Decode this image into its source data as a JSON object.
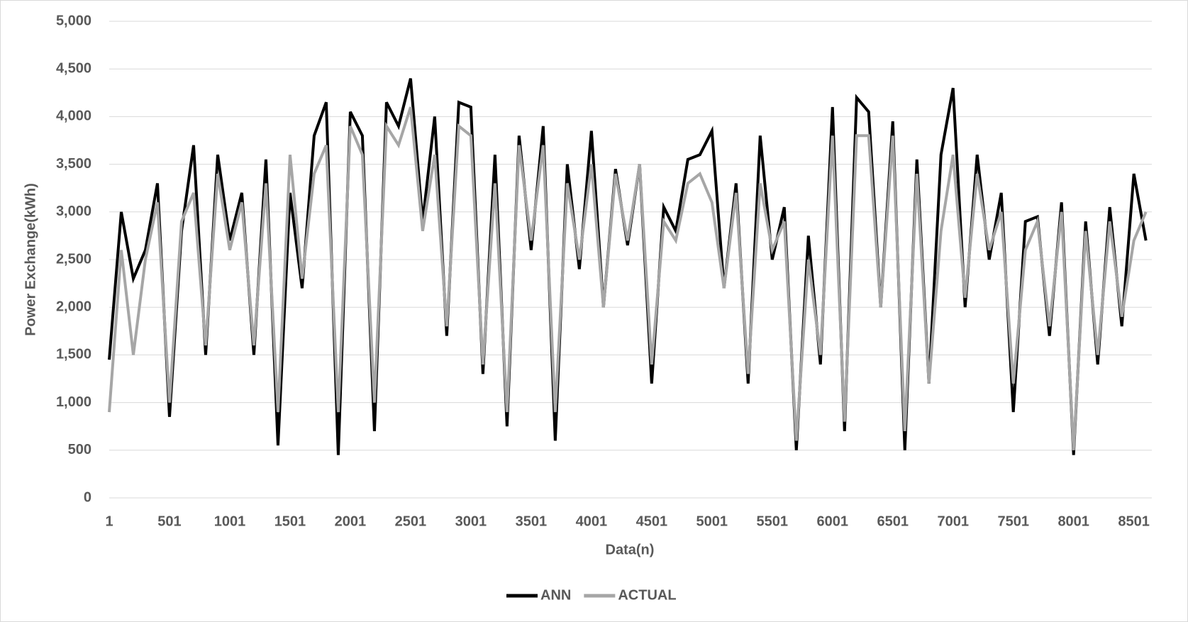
{
  "chart_data": {
    "type": "line",
    "x_label": "Data(n)",
    "y_label": "Power Exchange(kWh)",
    "x": [
      1,
      101,
      201,
      301,
      401,
      501,
      601,
      701,
      801,
      901,
      1001,
      1101,
      1201,
      1301,
      1401,
      1501,
      1601,
      1701,
      1801,
      1901,
      2001,
      2101,
      2201,
      2301,
      2401,
      2501,
      2601,
      2701,
      2801,
      2901,
      3001,
      3101,
      3201,
      3301,
      3401,
      3501,
      3601,
      3701,
      3801,
      3901,
      4001,
      4101,
      4201,
      4301,
      4401,
      4501,
      4601,
      4701,
      4801,
      4901,
      5001,
      5101,
      5201,
      5301,
      5401,
      5501,
      5601,
      5701,
      5801,
      5901,
      6001,
      6101,
      6201,
      6301,
      6401,
      6501,
      6601,
      6701,
      6801,
      6901,
      7001,
      7101,
      7201,
      7301,
      7401,
      7501,
      7601,
      7701,
      7801,
      7901,
      8001,
      8101,
      8201,
      8301,
      8401,
      8501,
      8601
    ],
    "series": [
      {
        "name": "ANN",
        "color": "#000000",
        "values": [
          1450,
          3000,
          2300,
          2600,
          3300,
          850,
          2800,
          3700,
          1500,
          3600,
          2700,
          3200,
          1500,
          3550,
          550,
          3200,
          2200,
          3800,
          4150,
          450,
          4050,
          3800,
          700,
          4150,
          3900,
          4400,
          2900,
          4000,
          1700,
          4150,
          4100,
          1300,
          3600,
          750,
          3800,
          2600,
          3900,
          600,
          3500,
          2400,
          3850,
          2000,
          3450,
          2650,
          3500,
          1200,
          3050,
          2800,
          3550,
          3600,
          3850,
          2200,
          3300,
          1200,
          3800,
          2500,
          3050,
          500,
          2750,
          1400,
          4100,
          700,
          4200,
          4050,
          2000,
          3950,
          500,
          3550,
          1200,
          3600,
          4300,
          2000,
          3600,
          2500,
          3200,
          900,
          2900,
          2950,
          1700,
          3100,
          450,
          2900,
          1400,
          3050,
          1800,
          3400,
          2700
        ]
      },
      {
        "name": "ACTUAL",
        "color": "#a6a6a6",
        "values": [
          900,
          2600,
          1500,
          2500,
          3100,
          1000,
          2900,
          3200,
          1600,
          3400,
          2600,
          3100,
          1600,
          3300,
          900,
          3600,
          2300,
          3400,
          3700,
          900,
          3900,
          3600,
          1000,
          3900,
          3700,
          4100,
          2800,
          3600,
          1800,
          3900,
          3800,
          1400,
          3300,
          900,
          3700,
          2700,
          3700,
          900,
          3300,
          2500,
          3500,
          2000,
          3400,
          2700,
          3500,
          1400,
          2900,
          2700,
          3300,
          3400,
          3100,
          2200,
          3200,
          1300,
          3300,
          2600,
          2900,
          600,
          2500,
          1500,
          3800,
          800,
          3800,
          3800,
          2000,
          3800,
          700,
          3400,
          1200,
          2800,
          3600,
          2100,
          3400,
          2600,
          3000,
          1200,
          2600,
          2900,
          1800,
          3000,
          500,
          2800,
          1500,
          2900,
          1900,
          2700,
          3000
        ]
      }
    ],
    "xlim": [
      1,
      8650
    ],
    "xticks": [
      1,
      501,
      1001,
      1501,
      2001,
      2501,
      3001,
      3501,
      4001,
      4501,
      5001,
      5501,
      6001,
      6501,
      7001,
      7501,
      8001,
      8501
    ],
    "ylim": [
      0,
      5000
    ],
    "yticks": [
      0,
      500,
      {
        "value": 1000,
        "label": "1,000"
      },
      {
        "value": 1500,
        "label": "1,500"
      },
      {
        "value": 2000,
        "label": "2,000"
      },
      {
        "value": 2500,
        "label": "2,500"
      },
      {
        "value": 3000,
        "label": "3,000"
      },
      {
        "value": 3500,
        "label": "3,500"
      },
      {
        "value": 4000,
        "label": "4,000"
      },
      {
        "value": 4500,
        "label": "4,500"
      },
      {
        "value": 5000,
        "label": "5,000"
      }
    ],
    "grid": true,
    "legend": "bottom"
  }
}
